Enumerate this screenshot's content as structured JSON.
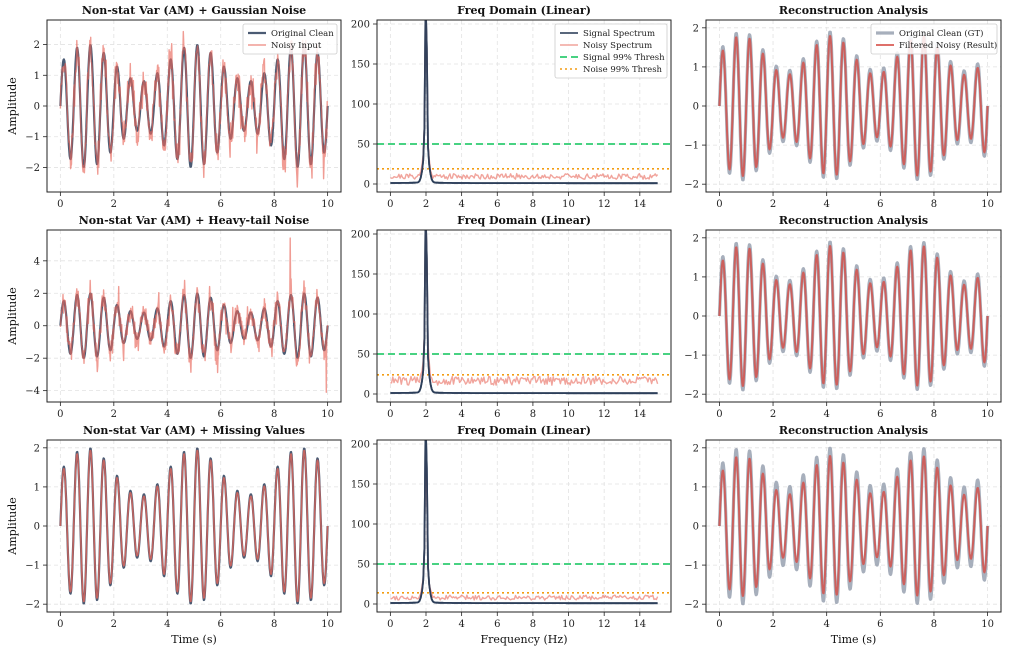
{
  "figure": {
    "background": "#ffffff"
  },
  "chart_data": [
    {
      "type": "line",
      "kind": "time",
      "title": "Non-stat Var (AM) + Gaussian Noise",
      "xlabel": "",
      "ylabel": "Amplitude",
      "xlim": [
        -0.5,
        10.5
      ],
      "ylim": [
        -2.8,
        2.8
      ],
      "xticks": [
        0,
        2,
        4,
        6,
        8,
        10
      ],
      "yticks": [
        -2,
        -1,
        0,
        1,
        2
      ],
      "series": [
        {
          "name": "Original Clean",
          "color": "#2c3e5a",
          "width": 2.2,
          "opacity": 0.85,
          "signal": {
            "type": "am",
            "carrier_hz": 2,
            "base": 1.4,
            "mod_amp": 0.6,
            "mod_hz": 0.25
          }
        },
        {
          "name": "Noisy Input",
          "color": "#e8675a",
          "width": 1.4,
          "opacity": 0.65,
          "signal": {
            "type": "am",
            "carrier_hz": 2,
            "base": 1.4,
            "mod_amp": 0.6,
            "mod_hz": 0.25,
            "noise": "gaussian",
            "noise_level": 0.3,
            "seed": 11
          }
        }
      ],
      "legend": {
        "position": "upper-right"
      }
    },
    {
      "type": "line",
      "kind": "freq",
      "title": "Freq Domain (Linear)",
      "xlabel": "",
      "ylabel": "",
      "xlim": [
        -0.75,
        15.75
      ],
      "ylim": [
        -10,
        205
      ],
      "xticks": [
        0,
        2,
        4,
        6,
        8,
        10,
        12,
        14
      ],
      "yticks": [
        0,
        50,
        100,
        150,
        200
      ],
      "series": [
        {
          "name": "Signal Spectrum",
          "color": "#2c3e5a",
          "width": 1.8,
          "opacity": 0.9,
          "spectrum": {
            "peak_hz": 2,
            "peak": 200,
            "floor": 1,
            "noise": 0
          }
        },
        {
          "name": "Noisy Spectrum",
          "color": "#e8675a",
          "width": 1.4,
          "opacity": 0.6,
          "spectrum": {
            "peak_hz": 2,
            "peak": 195,
            "floor": 6,
            "noise": 7,
            "seed": 21
          }
        }
      ],
      "thresholds": [
        {
          "name": "Signal 99% Thresh",
          "value": 50,
          "color": "#2ecc71",
          "dash": "7,4",
          "width": 1.8
        },
        {
          "name": "Noise 99% Thresh",
          "value": 19,
          "color": "#f39c12",
          "dash": "2,3",
          "width": 1.6
        }
      ],
      "legend": {
        "position": "upper-right"
      }
    },
    {
      "type": "line",
      "kind": "time",
      "title": "Reconstruction Analysis",
      "xlabel": "",
      "ylabel": "",
      "xlim": [
        -0.5,
        10.5
      ],
      "ylim": [
        -2.2,
        2.2
      ],
      "xticks": [
        0,
        2,
        4,
        6,
        8,
        10
      ],
      "yticks": [
        -2,
        -1,
        0,
        1,
        2
      ],
      "series": [
        {
          "name": "Original Clean (GT)",
          "color": "#8a94a6",
          "width": 3.2,
          "opacity": 0.75,
          "signal": {
            "type": "am",
            "carrier_hz": 2,
            "base": 1.4,
            "mod_amp": 0.5,
            "mod_hz": 0.3
          }
        },
        {
          "name": "Filtered Noisy (Result)",
          "color": "#d64c45",
          "width": 2.0,
          "opacity": 0.8,
          "signal": {
            "type": "am",
            "carrier_hz": 2,
            "base": 1.3,
            "mod_amp": 0.5,
            "mod_hz": 0.3
          }
        }
      ],
      "legend": {
        "position": "upper-right"
      }
    },
    {
      "type": "line",
      "kind": "time",
      "title": "Non-stat Var (AM) + Heavy-tail Noise",
      "xlabel": "",
      "ylabel": "Amplitude",
      "xlim": [
        -0.5,
        10.5
      ],
      "ylim": [
        -4.7,
        5.9
      ],
      "xticks": [
        0,
        2,
        4,
        6,
        8,
        10
      ],
      "yticks": [
        -4,
        -2,
        0,
        2,
        4
      ],
      "series": [
        {
          "name": "Original Clean",
          "color": "#2c3e5a",
          "width": 2.2,
          "opacity": 0.85,
          "signal": {
            "type": "am",
            "carrier_hz": 2,
            "base": 1.4,
            "mod_amp": 0.6,
            "mod_hz": 0.25
          }
        },
        {
          "name": "Noisy Input",
          "color": "#e8675a",
          "width": 1.4,
          "opacity": 0.65,
          "signal": {
            "type": "am",
            "carrier_hz": 2,
            "base": 1.4,
            "mod_amp": 0.6,
            "mod_hz": 0.25,
            "noise": "heavy",
            "noise_level": 0.35,
            "seed": 33,
            "spikes": [
              [
                8.6,
                5.4
              ],
              [
                9.95,
                -4.1
              ]
            ]
          }
        }
      ]
    },
    {
      "type": "line",
      "kind": "freq",
      "title": "Freq Domain (Linear)",
      "xlabel": "",
      "ylabel": "",
      "xlim": [
        -0.75,
        15.75
      ],
      "ylim": [
        -10,
        205
      ],
      "xticks": [
        0,
        2,
        4,
        6,
        8,
        10,
        12,
        14
      ],
      "yticks": [
        0,
        50,
        100,
        150,
        200
      ],
      "series": [
        {
          "name": "Signal Spectrum",
          "color": "#2c3e5a",
          "width": 1.8,
          "opacity": 0.9,
          "spectrum": {
            "peak_hz": 2,
            "peak": 200,
            "floor": 1,
            "noise": 0
          }
        },
        {
          "name": "Noisy Spectrum",
          "color": "#e8675a",
          "width": 1.4,
          "opacity": 0.6,
          "spectrum": {
            "peak_hz": 2,
            "peak": 195,
            "floor": 11,
            "noise": 11,
            "seed": 44
          }
        }
      ],
      "thresholds": [
        {
          "name": "Signal 99% Thresh",
          "value": 50,
          "color": "#2ecc71",
          "dash": "7,4",
          "width": 1.8
        },
        {
          "name": "Noise 99% Thresh",
          "value": 24,
          "color": "#f39c12",
          "dash": "2,3",
          "width": 1.6
        }
      ]
    },
    {
      "type": "line",
      "kind": "time",
      "title": "Reconstruction Analysis",
      "xlabel": "",
      "ylabel": "",
      "xlim": [
        -0.5,
        10.5
      ],
      "ylim": [
        -2.2,
        2.2
      ],
      "xticks": [
        0,
        2,
        4,
        6,
        8,
        10
      ],
      "yticks": [
        -2,
        -1,
        0,
        1,
        2
      ],
      "series": [
        {
          "name": "Original Clean (GT)",
          "color": "#8a94a6",
          "width": 3.2,
          "opacity": 0.75,
          "signal": {
            "type": "am",
            "carrier_hz": 2,
            "base": 1.4,
            "mod_amp": 0.5,
            "mod_hz": 0.3
          }
        },
        {
          "name": "Filtered Noisy (Result)",
          "color": "#d64c45",
          "width": 2.0,
          "opacity": 0.8,
          "signal": {
            "type": "am",
            "carrier_hz": 2,
            "base": 1.3,
            "mod_amp": 0.5,
            "mod_hz": 0.3
          }
        }
      ]
    },
    {
      "type": "line",
      "kind": "time",
      "title": "Non-stat Var (AM) + Missing Values",
      "xlabel": "Time (s)",
      "ylabel": "Amplitude",
      "xlim": [
        -0.5,
        10.5
      ],
      "ylim": [
        -2.2,
        2.2
      ],
      "xticks": [
        0,
        2,
        4,
        6,
        8,
        10
      ],
      "yticks": [
        -2,
        -1,
        0,
        1,
        2
      ],
      "series": [
        {
          "name": "Original Clean",
          "color": "#2c3e5a",
          "width": 2.2,
          "opacity": 0.85,
          "signal": {
            "type": "am",
            "carrier_hz": 2,
            "base": 1.4,
            "mod_amp": 0.6,
            "mod_hz": 0.25
          }
        },
        {
          "name": "Noisy Input",
          "color": "#e8675a",
          "width": 1.6,
          "opacity": 0.75,
          "signal": {
            "type": "am",
            "carrier_hz": 2,
            "base": 1.35,
            "mod_amp": 0.6,
            "mod_hz": 0.25
          }
        }
      ]
    },
    {
      "type": "line",
      "kind": "freq",
      "title": "Freq Domain (Linear)",
      "xlabel": "Frequency (Hz)",
      "ylabel": "",
      "xlim": [
        -0.75,
        15.75
      ],
      "ylim": [
        -10,
        205
      ],
      "xticks": [
        0,
        2,
        4,
        6,
        8,
        10,
        12,
        14
      ],
      "yticks": [
        0,
        50,
        100,
        150,
        200
      ],
      "series": [
        {
          "name": "Signal Spectrum",
          "color": "#2c3e5a",
          "width": 1.8,
          "opacity": 0.9,
          "spectrum": {
            "peak_hz": 2,
            "peak": 200,
            "floor": 1,
            "noise": 0
          }
        },
        {
          "name": "Noisy Spectrum",
          "color": "#e8675a",
          "width": 1.4,
          "opacity": 0.6,
          "spectrum": {
            "peak_hz": 2,
            "peak": 165,
            "floor": 5,
            "noise": 6,
            "seed": 55
          }
        }
      ],
      "thresholds": [
        {
          "name": "Signal 99% Thresh",
          "value": 50,
          "color": "#2ecc71",
          "dash": "7,4",
          "width": 1.8
        },
        {
          "name": "Noise 99% Thresh",
          "value": 14,
          "color": "#f39c12",
          "dash": "2,3",
          "width": 1.6
        }
      ]
    },
    {
      "type": "line",
      "kind": "time",
      "title": "Reconstruction Analysis",
      "xlabel": "Time (s)",
      "ylabel": "",
      "xlim": [
        -0.5,
        10.5
      ],
      "ylim": [
        -2.2,
        2.2
      ],
      "xticks": [
        0,
        2,
        4,
        6,
        8,
        10
      ],
      "yticks": [
        -2,
        -1,
        0,
        1,
        2
      ],
      "series": [
        {
          "name": "Original Clean (GT)",
          "color": "#8a94a6",
          "width": 3.2,
          "opacity": 0.75,
          "signal": {
            "type": "am",
            "carrier_hz": 2,
            "base": 1.5,
            "mod_amp": 0.5,
            "mod_hz": 0.3
          }
        },
        {
          "name": "Filtered Noisy (Result)",
          "color": "#d64c45",
          "width": 2.0,
          "opacity": 0.8,
          "signal": {
            "type": "am",
            "carrier_hz": 2,
            "base": 1.3,
            "mod_amp": 0.5,
            "mod_hz": 0.3
          }
        }
      ]
    }
  ]
}
